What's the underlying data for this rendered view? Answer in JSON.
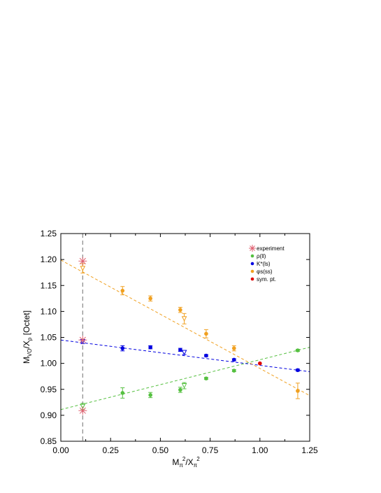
{
  "chart_data": {
    "type": "scatter",
    "title": "",
    "xlabel_main": "M",
    "xlabel_sub1": "π",
    "xlabel_sup1": "2",
    "xlabel_mid": "/X",
    "xlabel_sub2": "π",
    "xlabel_sup2": "2",
    "ylabel_main": "M",
    "ylabel_sub1": "V",
    "ylabel_sub2": "O",
    "ylabel_mid": "/X",
    "ylabel_sub3": "ρ",
    "ylabel_suffix": " [Octet]",
    "xlim": [
      0.0,
      1.25
    ],
    "ylim": [
      0.85,
      1.25
    ],
    "x_ticks": [
      0.0,
      0.25,
      0.5,
      0.75,
      1.0,
      1.25
    ],
    "x_tick_labels": [
      "0.00",
      "0.25",
      "0.50",
      "0.75",
      "1.00",
      "1.25"
    ],
    "y_ticks": [
      0.85,
      0.9,
      0.95,
      1.0,
      1.05,
      1.1,
      1.15,
      1.2,
      1.25
    ],
    "y_tick_labels": [
      "0.85",
      "0.90",
      "0.95",
      "1.00",
      "1.05",
      "1.10",
      "1.15",
      "1.20",
      "1.25"
    ],
    "grid": false,
    "legend_position": "top-right",
    "physical_point_x": 0.11,
    "legend": [
      {
        "label": "experiment",
        "marker": "star",
        "color": "#e06070"
      },
      {
        "label": "ρ(ll)",
        "marker": "circle",
        "color": "#55c040"
      },
      {
        "label": "K*(ls)",
        "marker": "circle",
        "color": "#0000e0"
      },
      {
        "label": "φs(ss)",
        "marker": "circle",
        "color": "#f0a020"
      },
      {
        "label": "sym. pt.",
        "marker": "circle",
        "color": "#e00000"
      }
    ],
    "series": [
      {
        "key": "rho",
        "color": "#55c040",
        "fit_line": {
          "x": [
            0.0,
            1.25
          ],
          "y": [
            0.911,
            1.031
          ]
        },
        "points": [
          {
            "x": 0.31,
            "y": 0.943,
            "err": 0.01
          },
          {
            "x": 0.45,
            "y": 0.939,
            "err": 0.005
          },
          {
            "x": 0.6,
            "y": 0.949,
            "err": 0.005
          },
          {
            "x": 0.73,
            "y": 0.971,
            "err": 0.002
          },
          {
            "x": 0.87,
            "y": 0.986,
            "err": 0.002
          },
          {
            "x": 1.19,
            "y": 1.025,
            "err": 0.002
          }
        ],
        "open_points": [
          {
            "x": 0.11,
            "y": 0.917,
            "err": 0.006
          },
          {
            "x": 0.62,
            "y": 0.957,
            "err": 0.006
          }
        ]
      },
      {
        "key": "kstar",
        "color": "#0000e0",
        "fit_line": {
          "x": [
            0.0,
            1.25
          ],
          "y": [
            1.045,
            0.984
          ]
        },
        "points": [
          {
            "x": 0.31,
            "y": 1.029,
            "err": 0.005
          },
          {
            "x": 0.45,
            "y": 1.031,
            "err": 0.003
          },
          {
            "x": 0.6,
            "y": 1.026,
            "err": 0.003
          },
          {
            "x": 0.73,
            "y": 1.015,
            "err": 0.002
          },
          {
            "x": 0.87,
            "y": 1.007,
            "err": 0.002
          },
          {
            "x": 1.19,
            "y": 0.987,
            "err": 0.002
          }
        ],
        "open_points": [
          {
            "x": 0.11,
            "y": 1.042,
            "err": 0.004
          },
          {
            "x": 0.62,
            "y": 1.021,
            "err": 0.004
          }
        ]
      },
      {
        "key": "phi",
        "color": "#f0a020",
        "fit_line": {
          "x": [
            0.0,
            1.25
          ],
          "y": [
            1.199,
            0.938
          ]
        },
        "points": [
          {
            "x": 0.31,
            "y": 1.14,
            "err": 0.008
          },
          {
            "x": 0.45,
            "y": 1.125,
            "err": 0.005
          },
          {
            "x": 0.6,
            "y": 1.103,
            "err": 0.005
          },
          {
            "x": 0.73,
            "y": 1.057,
            "err": 0.008
          },
          {
            "x": 0.87,
            "y": 1.029,
            "err": 0.005
          },
          {
            "x": 1.19,
            "y": 0.947,
            "err": 0.015
          }
        ],
        "open_points": [
          {
            "x": 0.11,
            "y": 1.183,
            "err": 0.009
          },
          {
            "x": 0.62,
            "y": 1.086,
            "err": 0.01
          }
        ]
      }
    ],
    "experiment": [
      {
        "x": 0.11,
        "y": 1.197
      },
      {
        "x": 0.11,
        "y": 1.045
      },
      {
        "x": 0.11,
        "y": 0.909
      }
    ],
    "symmetric_point": {
      "x": 1.0,
      "y": 1.0
    }
  }
}
